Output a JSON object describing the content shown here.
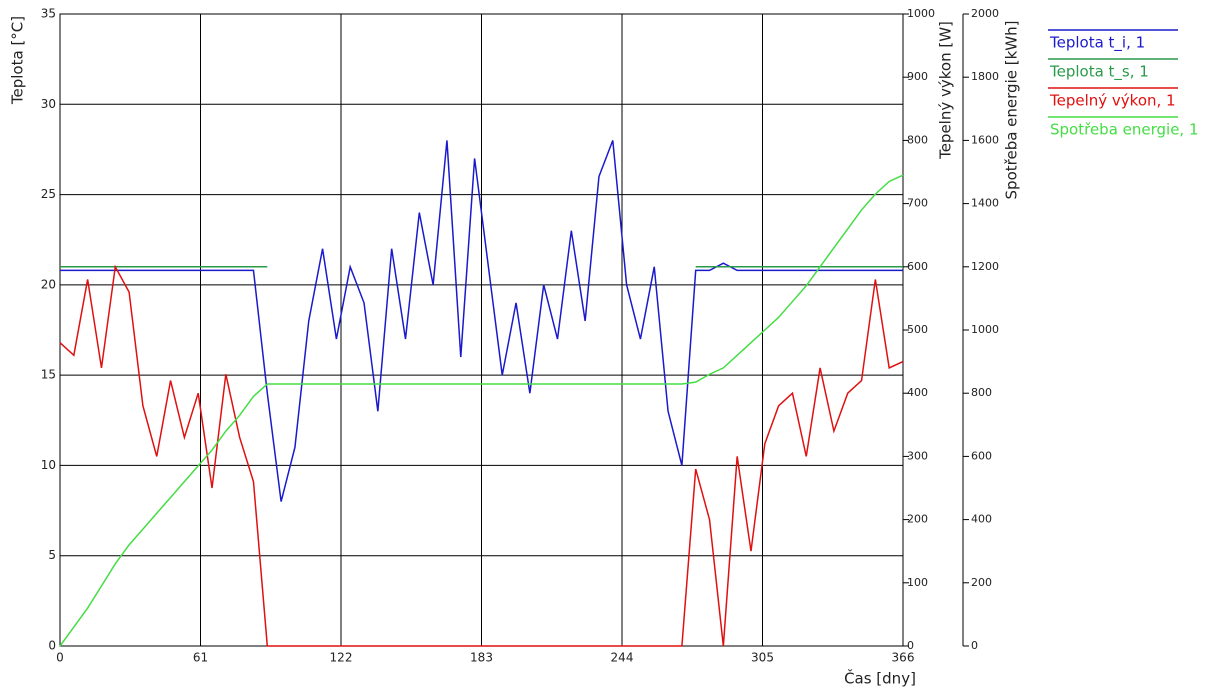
{
  "chart_data": {
    "type": "line",
    "xlabel": "Čas [dny]",
    "ylabel": "Teplota [°C]",
    "y2label": "Tepelný výkon [W]",
    "y3label": "Spotřeba energie [kWh]",
    "xlim": [
      0,
      366
    ],
    "xticks": [
      0,
      61,
      122,
      183,
      244,
      305,
      366
    ],
    "ylim": [
      0,
      35
    ],
    "yticks": [
      0,
      5,
      10,
      15,
      20,
      25,
      30,
      35
    ],
    "y2lim": [
      0,
      1000
    ],
    "y2ticks": [
      0,
      100,
      200,
      300,
      400,
      500,
      600,
      700,
      800,
      900,
      1000
    ],
    "y3lim": [
      0,
      2000
    ],
    "y3ticks": [
      0,
      200,
      400,
      600,
      800,
      1000,
      1200,
      1400,
      1600,
      1800,
      2000
    ],
    "grid": true,
    "legend": "right",
    "x": [
      0,
      6,
      12,
      18,
      24,
      30,
      36,
      42,
      48,
      54,
      60,
      66,
      72,
      78,
      84,
      90,
      96,
      102,
      108,
      114,
      120,
      126,
      132,
      138,
      144,
      150,
      156,
      162,
      168,
      174,
      180,
      186,
      192,
      198,
      204,
      210,
      216,
      222,
      228,
      234,
      240,
      246,
      252,
      258,
      264,
      270,
      276,
      282,
      288,
      294,
      300,
      306,
      312,
      318,
      324,
      330,
      336,
      342,
      348,
      354,
      360,
      366
    ],
    "series": [
      {
        "name": "Teplota t_i, 1",
        "color": "#1a1acc",
        "axis": "y",
        "values": [
          20.8,
          20.8,
          20.8,
          20.8,
          20.8,
          20.8,
          20.8,
          20.8,
          20.8,
          20.8,
          20.8,
          20.8,
          20.8,
          20.8,
          20.8,
          14,
          8,
          11,
          18,
          22,
          17,
          21,
          19,
          13,
          22,
          17,
          24,
          20,
          28,
          16,
          27,
          21,
          15,
          19,
          14,
          20,
          17,
          23,
          18,
          26,
          28,
          20,
          17,
          21,
          13,
          10,
          20.8,
          20.8,
          21.2,
          20.8,
          20.8,
          20.8,
          20.8,
          20.8,
          20.8,
          20.8,
          20.8,
          20.8,
          20.8,
          20.8,
          20.8,
          20.8
        ]
      },
      {
        "name": "Teplota t_s, 1",
        "color": "#2a9a4a",
        "axis": "y",
        "values": [
          21,
          21,
          21,
          21,
          21,
          21,
          21,
          21,
          21,
          21,
          21,
          21,
          21,
          21,
          21,
          21,
          null,
          null,
          null,
          null,
          null,
          null,
          null,
          null,
          null,
          null,
          null,
          null,
          null,
          null,
          null,
          null,
          null,
          null,
          null,
          null,
          null,
          null,
          null,
          null,
          null,
          null,
          null,
          null,
          null,
          null,
          21,
          21,
          21,
          21,
          21,
          21,
          21,
          21,
          21,
          21,
          21,
          21,
          21,
          21,
          21,
          21
        ]
      },
      {
        "name": "Tepelný výkon,  1",
        "color": "#e01010",
        "axis": "y2",
        "values": [
          480,
          460,
          580,
          440,
          600,
          560,
          380,
          300,
          420,
          330,
          400,
          250,
          430,
          330,
          260,
          0,
          0,
          0,
          0,
          0,
          0,
          0,
          0,
          0,
          0,
          0,
          0,
          0,
          0,
          0,
          0,
          0,
          0,
          0,
          0,
          0,
          0,
          0,
          0,
          0,
          0,
          0,
          0,
          0,
          0,
          0,
          280,
          200,
          0,
          300,
          150,
          320,
          380,
          400,
          300,
          440,
          340,
          400,
          420,
          580,
          440,
          450
        ]
      },
      {
        "name": "Spotřeba energie, 1",
        "color": "#44dd44",
        "axis": "y3",
        "values": [
          0,
          60,
          120,
          190,
          260,
          320,
          370,
          420,
          470,
          520,
          570,
          620,
          680,
          730,
          790,
          829,
          829,
          829,
          829,
          829,
          829,
          829,
          829,
          829,
          829,
          829,
          829,
          829,
          829,
          829,
          829,
          829,
          829,
          829,
          829,
          829,
          829,
          829,
          829,
          829,
          829,
          829,
          829,
          829,
          829,
          829,
          835,
          860,
          880,
          920,
          960,
          1000,
          1040,
          1090,
          1140,
          1200,
          1260,
          1320,
          1380,
          1430,
          1470,
          1490
        ]
      }
    ]
  }
}
